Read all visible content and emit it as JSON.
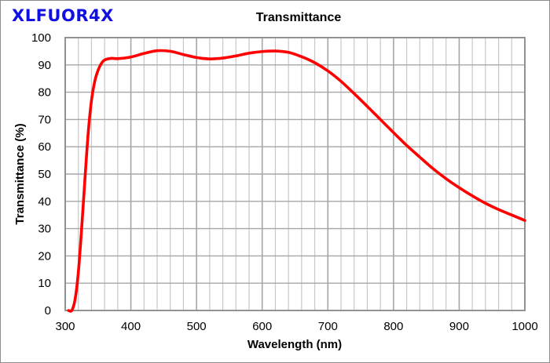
{
  "brand": {
    "label": "XLFUOR4X",
    "color": "#1010e0"
  },
  "chart_data": {
    "type": "line",
    "title": "Transmittance",
    "xlabel": "Wavelength (nm)",
    "ylabel": "Transmittance (%)",
    "xlim": [
      300,
      1000
    ],
    "ylim": [
      0,
      100
    ],
    "x_ticks": [
      300,
      400,
      500,
      600,
      700,
      800,
      900,
      1000
    ],
    "y_ticks": [
      0,
      10,
      20,
      30,
      40,
      50,
      60,
      70,
      80,
      90,
      100
    ],
    "x_minor_step": 20,
    "grid": true,
    "legend": null,
    "series": [
      {
        "name": "XLFUOR4X",
        "color": "#ff0000",
        "x": [
          305,
          310,
          315,
          320,
          325,
          330,
          335,
          340,
          345,
          350,
          355,
          360,
          370,
          380,
          400,
          420,
          440,
          460,
          480,
          500,
          520,
          540,
          560,
          580,
          600,
          620,
          640,
          660,
          680,
          700,
          720,
          740,
          760,
          780,
          800,
          820,
          840,
          860,
          880,
          900,
          920,
          940,
          960,
          980,
          1000
        ],
        "y": [
          0,
          0,
          4,
          14,
          30,
          48,
          65,
          77,
          84,
          88,
          90.5,
          91.8,
          92.4,
          92.3,
          92.9,
          94.2,
          95.2,
          95.0,
          93.8,
          92.7,
          92.2,
          92.5,
          93.3,
          94.3,
          94.9,
          95.1,
          94.6,
          93.0,
          90.8,
          87.8,
          84.0,
          79.5,
          74.8,
          70.0,
          65.2,
          60.5,
          56.2,
          52.0,
          48.3,
          45.0,
          42.0,
          39.3,
          37.0,
          35.0,
          33.0
        ]
      }
    ]
  },
  "styles": {
    "grid_major_color": "#a6a6a6",
    "grid_minor_color": "#c8c8c8",
    "plot_border_color": "#8c8c8c",
    "line_color": "#ff0000"
  }
}
